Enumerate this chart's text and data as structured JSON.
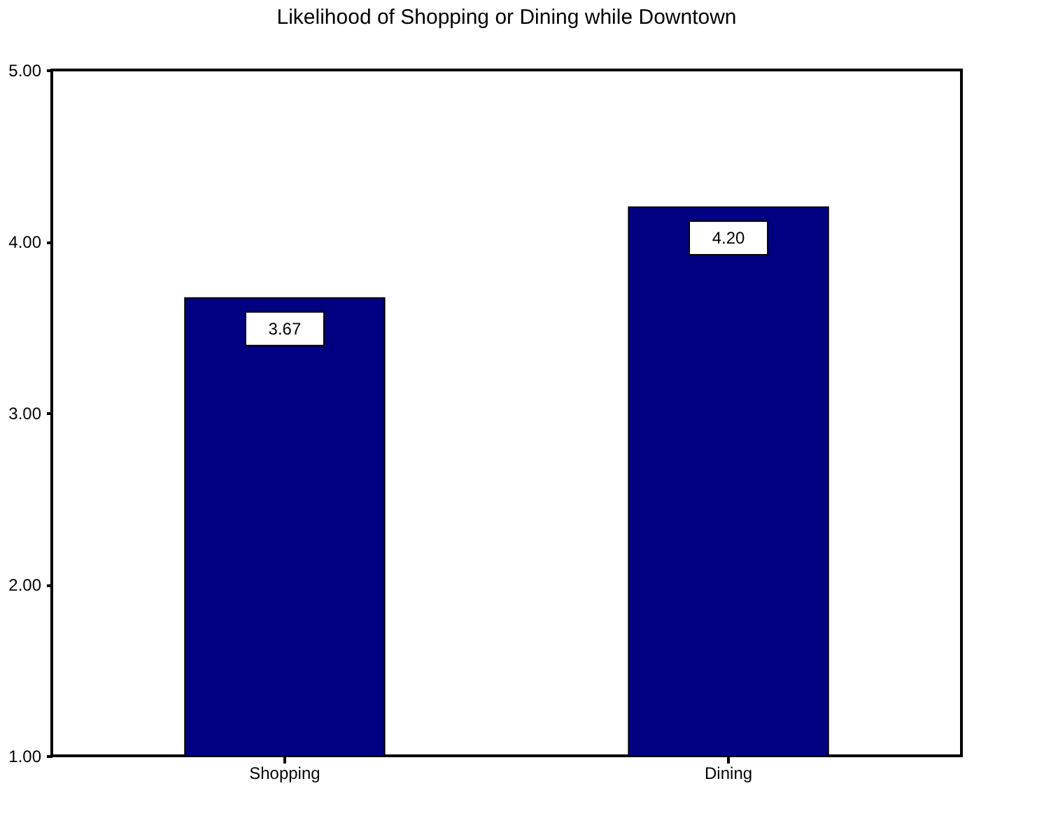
{
  "chart_data": {
    "type": "bar",
    "title": "Likelihood of Shopping or Dining while Downtown",
    "categories": [
      "Shopping",
      "Dining"
    ],
    "values": [
      3.67,
      4.2
    ],
    "value_labels": [
      "3.67",
      "4.20"
    ],
    "color": "#000080",
    "ylim": [
      1,
      5
    ],
    "yticks": [
      {
        "value": 1,
        "label": "1.00"
      },
      {
        "value": 2,
        "label": "2.00"
      },
      {
        "value": 3,
        "label": "3.00"
      },
      {
        "value": 4,
        "label": "4.00"
      },
      {
        "value": 5,
        "label": "5.00"
      }
    ],
    "grid": false
  }
}
